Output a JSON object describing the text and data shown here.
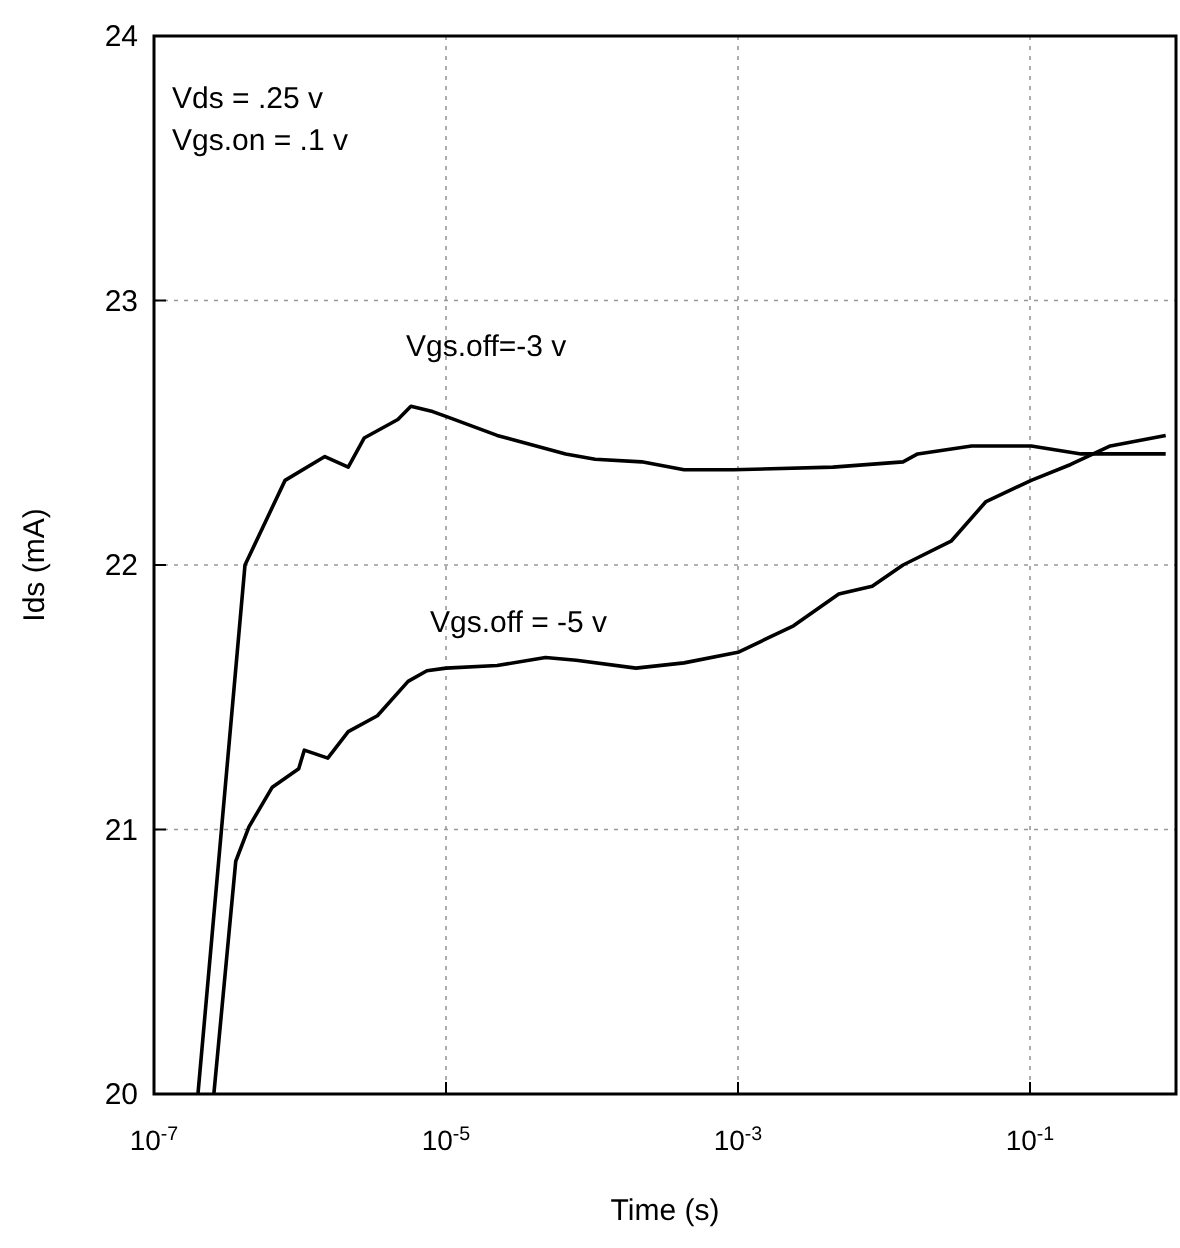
{
  "chart_data": {
    "type": "line",
    "xlabel": "Time (s)",
    "ylabel": "Ids (mA)",
    "log": "x",
    "grid": true,
    "line_style": "solid",
    "marker": "none",
    "xlim": [
      1e-07,
      1
    ],
    "ylim": [
      20,
      24
    ],
    "xticks": [
      {
        "value": 1e-07,
        "label": "10$^{-7}$"
      },
      {
        "value": 1e-05,
        "label": "10$^{-5}$"
      },
      {
        "value": 0.001,
        "label": "10$^{-3}$"
      },
      {
        "value": 0.1,
        "label": "10$^{-1}$"
      }
    ],
    "yticks": [
      20,
      21,
      22,
      23,
      24
    ],
    "annotations": [
      "Vds = .25 v",
      "Vgs.on = .1 v",
      "Vgs.off=-3 v",
      "Vgs.off = -5 v"
    ],
    "series": [
      {
        "color": "#000000",
        "x": [
          2e-07,
          4.2e-07,
          7.9e-07,
          1.48e-06,
          2.14e-06,
          2.75e-06,
          4.68e-06,
          5.75e-06,
          8.1e-06,
          1.02e-05,
          2.24e-05,
          6.6e-05,
          0.000105,
          0.000219,
          0.000427,
          0.00093,
          0.00447,
          0.0135,
          0.017,
          0.0398,
          0.102,
          0.224,
          0.85
        ],
        "values": [
          20,
          22.0,
          22.32,
          22.41,
          22.37,
          22.48,
          22.55,
          22.6,
          22.58,
          22.56,
          22.49,
          22.42,
          22.4,
          22.39,
          22.36,
          22.36,
          22.37,
          22.39,
          22.42,
          22.45,
          22.45,
          22.42,
          22.42
        ]
      },
      {
        "color": "#000000",
        "x": [
          2.57e-07,
          3.63e-07,
          4.47e-07,
          6.46e-07,
          9.8e-07,
          1.07e-06,
          1.55e-06,
          2.14e-06,
          3.39e-06,
          5.5e-06,
          7.4e-06,
          1e-05,
          2.24e-05,
          4.8e-05,
          7.8e-05,
          0.0002,
          0.000427,
          0.001,
          0.0024,
          0.0049,
          0.0083,
          0.0135,
          0.0288,
          0.05,
          0.102,
          0.19,
          0.355,
          0.85
        ],
        "values": [
          20,
          20.88,
          21.01,
          21.16,
          21.23,
          21.3,
          21.27,
          21.37,
          21.43,
          21.56,
          21.6,
          21.61,
          21.62,
          21.65,
          21.64,
          21.61,
          21.63,
          21.67,
          21.77,
          21.89,
          21.92,
          22.0,
          22.09,
          22.24,
          22.32,
          22.38,
          22.45,
          22.49
        ]
      }
    ]
  }
}
